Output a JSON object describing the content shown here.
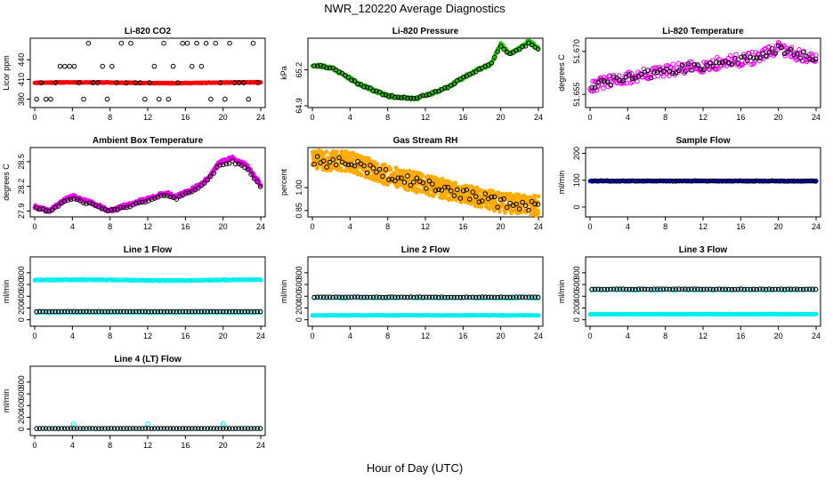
{
  "figure": {
    "title": "NWR_120220  Average Diagnostics",
    "xlabel": "Hour of Day (UTC)"
  },
  "colors": {
    "black": "#000000",
    "red": "#ff0000",
    "green": "#22cc00",
    "magenta": "#ee00ee",
    "orange": "#ffaa00",
    "cyan": "#00eeee",
    "blue": "#0000ff"
  },
  "chart_data": [
    {
      "type": "scatter",
      "title": "Li-820 CO2",
      "ylabel": "Licor ppm",
      "xlim": [
        0,
        24
      ],
      "ylim": [
        370,
        470
      ],
      "xticks": [
        "0",
        "4",
        "8",
        "12",
        "16",
        "20",
        "24"
      ],
      "yticks": [
        {
          "value": 380,
          "label": "380"
        },
        {
          "value": 410,
          "label": "410"
        },
        {
          "value": 440,
          "label": "440"
        }
      ],
      "series": [
        {
          "color": "red",
          "shape": "dot",
          "pattern": "flat",
          "start": 0,
          "end": 24,
          "step": 0.08,
          "base": 405,
          "amp": 0.6,
          "noise": 0.6,
          "seed": 11
        },
        {
          "color": "black",
          "shape": "ring",
          "pattern": "levels",
          "start": 0.2,
          "end": 24,
          "step": 0.5,
          "levels": [
            380,
            405,
            430,
            465
          ],
          "seed": 12
        }
      ]
    },
    {
      "type": "scatter",
      "title": "Li-820 Pressure",
      "ylabel": "kPa",
      "xlim": [
        0,
        24
      ],
      "ylim": [
        64.9,
        65.45
      ],
      "xticks": [
        "0",
        "4",
        "8",
        "12",
        "16",
        "20",
        "24"
      ],
      "yticks": [
        {
          "value": 64.9,
          "label": "64.9"
        },
        {
          "value": 65.2,
          "label": "65.2"
        }
      ],
      "series": [
        {
          "color": "green",
          "shape": "dot",
          "pattern": "knots",
          "start": 0,
          "end": 24,
          "step": 0.08,
          "knots": [
            [
              0,
              65.24
            ],
            [
              2,
              65.22
            ],
            [
              5,
              65.08
            ],
            [
              8,
              64.98
            ],
            [
              11,
              64.96
            ],
            [
              14,
              65.04
            ],
            [
              17,
              65.18
            ],
            [
              19,
              65.25
            ],
            [
              20,
              65.42
            ],
            [
              21,
              65.33
            ],
            [
              23,
              65.44
            ],
            [
              24,
              65.38
            ]
          ],
          "noise": 0.012,
          "seed": 21
        },
        {
          "color": "black",
          "shape": "ring",
          "pattern": "knots",
          "start": 0.2,
          "end": 24,
          "step": 0.33,
          "knots": [
            [
              0,
              65.24
            ],
            [
              2,
              65.22
            ],
            [
              5,
              65.08
            ],
            [
              8,
              64.98
            ],
            [
              11,
              64.96
            ],
            [
              14,
              65.04
            ],
            [
              17,
              65.18
            ],
            [
              19,
              65.25
            ],
            [
              20,
              65.4
            ],
            [
              21,
              65.33
            ],
            [
              23,
              65.42
            ],
            [
              24,
              65.38
            ]
          ],
          "noise": 0.008,
          "seed": 22
        }
      ]
    },
    {
      "type": "scatter",
      "title": "Li-820 Temperature",
      "ylabel": "degrees C",
      "xlim": [
        0,
        24
      ],
      "ylim": [
        51.651,
        51.674
      ],
      "xticks": [
        "0",
        "4",
        "8",
        "12",
        "16",
        "20",
        "24"
      ],
      "yticks": [
        {
          "value": 51.655,
          "label": "51.655"
        },
        {
          "value": 51.67,
          "label": "51.670"
        }
      ],
      "series": [
        {
          "color": "magenta",
          "shape": "ring",
          "pattern": "knots",
          "start": 0,
          "end": 24,
          "step": 0.1,
          "knots": [
            [
              0,
              51.658
            ],
            [
              6,
              51.662
            ],
            [
              12,
              51.665
            ],
            [
              18,
              51.668
            ],
            [
              20,
              51.671
            ],
            [
              24,
              51.667
            ]
          ],
          "noise": 0.0022,
          "seed": 31
        },
        {
          "color": "black",
          "shape": "ring",
          "pattern": "knots",
          "start": 0.2,
          "end": 24,
          "step": 0.33,
          "knots": [
            [
              0,
              51.658
            ],
            [
              6,
              51.662
            ],
            [
              12,
              51.665
            ],
            [
              18,
              51.668
            ],
            [
              20,
              51.671
            ],
            [
              24,
              51.667
            ]
          ],
          "noise": 0.0015,
          "seed": 32
        }
      ]
    },
    {
      "type": "scatter",
      "title": "Ambient Box Temperature",
      "ylabel": "degrees C",
      "xlim": [
        0,
        24
      ],
      "ylim": [
        27.85,
        28.65
      ],
      "xticks": [
        "0",
        "4",
        "8",
        "12",
        "16",
        "20",
        "24"
      ],
      "yticks": [
        {
          "value": 27.9,
          "label": "27.9"
        },
        {
          "value": 28.2,
          "label": "28.2"
        },
        {
          "value": 28.5,
          "label": "28.5"
        }
      ],
      "series": [
        {
          "color": "magenta",
          "shape": "dot",
          "pattern": "knots",
          "start": 0,
          "end": 24,
          "step": 0.06,
          "knots": [
            [
              0,
              27.95
            ],
            [
              1.5,
              27.9
            ],
            [
              3,
              28.02
            ],
            [
              4,
              28.08
            ],
            [
              6,
              28.0
            ],
            [
              8,
              27.9
            ],
            [
              10,
              27.98
            ],
            [
              12,
              28.05
            ],
            [
              14,
              28.12
            ],
            [
              15,
              28.07
            ],
            [
              17,
              28.18
            ],
            [
              18.5,
              28.3
            ],
            [
              19.5,
              28.48
            ],
            [
              21,
              28.55
            ],
            [
              22.5,
              28.45
            ],
            [
              24,
              28.22
            ]
          ],
          "noise": 0.02,
          "seed": 41
        },
        {
          "color": "black",
          "shape": "ring",
          "pattern": "knots",
          "start": 0.2,
          "end": 24,
          "step": 0.33,
          "knots": [
            [
              0,
              27.95
            ],
            [
              1.5,
              27.9
            ],
            [
              3,
              28.0
            ],
            [
              4,
              28.05
            ],
            [
              6,
              27.98
            ],
            [
              8,
              27.9
            ],
            [
              10,
              27.96
            ],
            [
              12,
              28.02
            ],
            [
              14,
              28.1
            ],
            [
              15,
              28.05
            ],
            [
              17,
              28.16
            ],
            [
              18.5,
              28.28
            ],
            [
              19.5,
              28.45
            ],
            [
              21,
              28.5
            ],
            [
              22.5,
              28.42
            ],
            [
              24,
              28.2
            ]
          ],
          "noise": 0.012,
          "seed": 42
        }
      ]
    },
    {
      "type": "scatter",
      "title": "Gas Stream RH",
      "ylabel": "percent",
      "xlim": [
        0,
        24
      ],
      "ylim": [
        0.82,
        1.25
      ],
      "xticks": [
        "0",
        "4",
        "8",
        "12",
        "16",
        "20",
        "24"
      ],
      "yticks": [
        {
          "value": 0.85,
          "label": "0.85"
        },
        {
          "value": 1.0,
          "label": "1.00"
        }
      ],
      "series": [
        {
          "color": "orange",
          "shape": "dot",
          "pattern": "knots",
          "start": 0,
          "end": 24,
          "step": 0.03,
          "knots": [
            [
              0,
              1.18
            ],
            [
              4,
              1.17
            ],
            [
              8,
              1.08
            ],
            [
              12,
              1.02
            ],
            [
              16,
              0.96
            ],
            [
              20,
              0.9
            ],
            [
              24,
              0.88
            ]
          ],
          "noise": 0.065,
          "seed": 51
        },
        {
          "color": "black",
          "shape": "ring",
          "pattern": "knots",
          "start": 0.2,
          "end": 24,
          "step": 0.33,
          "knots": [
            [
              0,
              1.17
            ],
            [
              4,
              1.16
            ],
            [
              8,
              1.08
            ],
            [
              12,
              1.02
            ],
            [
              16,
              0.96
            ],
            [
              20,
              0.9
            ],
            [
              24,
              0.88
            ]
          ],
          "noise": 0.035,
          "seed": 52
        }
      ]
    },
    {
      "type": "scatter",
      "title": "Sample Flow",
      "ylabel": "ml/min",
      "xlim": [
        0,
        24
      ],
      "ylim": [
        -30,
        215
      ],
      "xticks": [
        "0",
        "4",
        "8",
        "12",
        "16",
        "20",
        "24"
      ],
      "yticks": [
        {
          "value": 0,
          "label": "0"
        },
        {
          "value": 100,
          "label": "100"
        },
        {
          "value": 200,
          "label": "200"
        }
      ],
      "series": [
        {
          "color": "blue",
          "shape": "dot",
          "pattern": "flat",
          "start": 0,
          "end": 24,
          "step": 0.08,
          "base": 97,
          "amp": 0,
          "noise": 1.5,
          "seed": 61
        },
        {
          "color": "black",
          "shape": "ring",
          "pattern": "flat",
          "start": 0.2,
          "end": 24,
          "step": 0.33,
          "base": 97,
          "amp": 0,
          "noise": 1,
          "seed": 62
        }
      ]
    },
    {
      "type": "scatter",
      "title": "Line 1 Flow",
      "ylabel": "ml/min",
      "xlim": [
        0,
        24
      ],
      "ylim": [
        -80,
        1040
      ],
      "xticks": [
        "0",
        "4",
        "8",
        "12",
        "16",
        "20",
        "24"
      ],
      "yticks": [
        {
          "value": 0,
          "label": "0"
        },
        {
          "value": 200,
          "label": "200"
        },
        {
          "value": 400,
          "label": "400"
        },
        {
          "value": 600,
          "label": "600"
        },
        {
          "value": 800,
          "label": "800"
        }
      ],
      "series": [
        {
          "color": "cyan",
          "shape": "dot",
          "pattern": "flat",
          "start": 0,
          "end": 24,
          "step": 0.06,
          "base": 675,
          "amp": 6,
          "noise": 8,
          "seed": 71
        },
        {
          "color": "cyan",
          "shape": "ring",
          "pattern": "flat",
          "start": 0.2,
          "end": 24,
          "step": 0.33,
          "base": 125,
          "amp": 0,
          "noise": 4,
          "seed": 72
        },
        {
          "color": "black",
          "shape": "ring",
          "pattern": "flat",
          "start": 0.2,
          "end": 24,
          "step": 0.33,
          "base": 140,
          "amp": 0,
          "noise": 2,
          "seed": 73
        }
      ]
    },
    {
      "type": "scatter",
      "title": "Line 2 Flow",
      "ylabel": "ml/min",
      "xlim": [
        0,
        24
      ],
      "ylim": [
        -80,
        1040
      ],
      "xticks": [
        "0",
        "4",
        "8",
        "12",
        "16",
        "20",
        "24"
      ],
      "yticks": [
        {
          "value": 0,
          "label": "0"
        },
        {
          "value": 200,
          "label": "200"
        },
        {
          "value": 400,
          "label": "400"
        },
        {
          "value": 600,
          "label": "600"
        },
        {
          "value": 800,
          "label": "800"
        }
      ],
      "series": [
        {
          "color": "cyan",
          "shape": "dot",
          "pattern": "flat",
          "start": 0,
          "end": 24,
          "step": 0.06,
          "base": 75,
          "amp": 0,
          "noise": 4,
          "seed": 81
        },
        {
          "color": "cyan",
          "shape": "ring",
          "pattern": "flat",
          "start": 0.2,
          "end": 24,
          "step": 0.33,
          "base": 375,
          "amp": 0,
          "noise": 8,
          "seed": 82
        },
        {
          "color": "black",
          "shape": "ring",
          "pattern": "flat",
          "start": 0.2,
          "end": 24,
          "step": 0.33,
          "base": 385,
          "amp": 0,
          "noise": 4,
          "seed": 83
        }
      ]
    },
    {
      "type": "scatter",
      "title": "Line 3 Flow",
      "ylabel": "ml/min",
      "xlim": [
        0,
        24
      ],
      "ylim": [
        -80,
        1040
      ],
      "xticks": [
        "0",
        "4",
        "8",
        "12",
        "16",
        "20",
        "24"
      ],
      "yticks": [
        {
          "value": 0,
          "label": "0"
        },
        {
          "value": 200,
          "label": "200"
        },
        {
          "value": 400,
          "label": "400"
        },
        {
          "value": 600,
          "label": "600"
        },
        {
          "value": 800,
          "label": "800"
        }
      ],
      "series": [
        {
          "color": "cyan",
          "shape": "dot",
          "pattern": "flat",
          "start": 0,
          "end": 24,
          "step": 0.06,
          "base": 95,
          "amp": 0,
          "noise": 4,
          "seed": 91
        },
        {
          "color": "cyan",
          "shape": "ring",
          "pattern": "flat",
          "start": 0.2,
          "end": 24,
          "step": 0.33,
          "base": 510,
          "amp": 0,
          "noise": 10,
          "seed": 92
        },
        {
          "color": "black",
          "shape": "ring",
          "pattern": "flat",
          "start": 0.2,
          "end": 24,
          "step": 0.33,
          "base": 520,
          "amp": 0,
          "noise": 4,
          "seed": 93
        }
      ]
    },
    {
      "type": "scatter",
      "title": "Line 4 (LT) Flow",
      "ylabel": "ml/min",
      "xlim": [
        0,
        24
      ],
      "ylim": [
        -80,
        1040
      ],
      "xticks": [
        "0",
        "4",
        "8",
        "12",
        "16",
        "20",
        "24"
      ],
      "yticks": [
        {
          "value": 0,
          "label": "0"
        },
        {
          "value": 200,
          "label": "200"
        },
        {
          "value": 400,
          "label": "400"
        },
        {
          "value": 600,
          "label": "600"
        },
        {
          "value": 800,
          "label": "800"
        }
      ],
      "series": [
        {
          "color": "cyan",
          "shape": "ring",
          "pattern": "flat",
          "start": 0.2,
          "end": 24,
          "step": 0.33,
          "base": 10,
          "amp": 0,
          "noise": 2,
          "seed": 101,
          "spikes": [
            [
              4.1,
              85
            ],
            [
              12.0,
              85
            ],
            [
              20.0,
              85
            ]
          ]
        },
        {
          "color": "black",
          "shape": "ring",
          "pattern": "flat",
          "start": 0.2,
          "end": 24,
          "step": 0.33,
          "base": 10,
          "amp": 0,
          "noise": 1,
          "seed": 102
        }
      ]
    }
  ]
}
